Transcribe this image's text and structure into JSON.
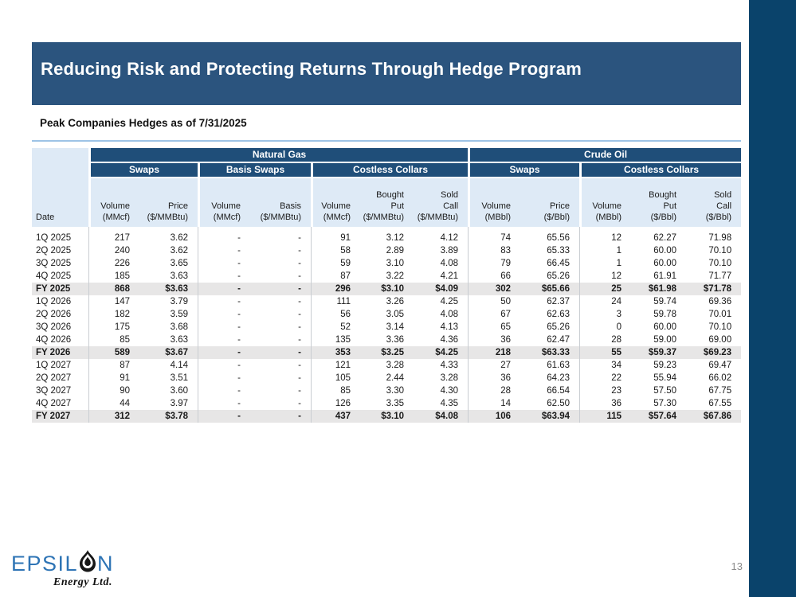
{
  "slide": {
    "title": "Reducing Risk and Protecting Returns Through Hedge Program",
    "subtitle": "Peak Companies Hedges as of 7/31/2025",
    "page_number": "13"
  },
  "logo": {
    "prefix": "EPSIL",
    "suffix": "N",
    "tagline": "Energy Ltd.",
    "icon": "oil-droplet-icon"
  },
  "colors": {
    "banner_blue": "#2B547E",
    "side_bar_blue": "#0A436B",
    "table_header_blue": "#1F4E79",
    "subheader_light_blue": "#DEEAF6",
    "total_row_gray": "#E7E6E6",
    "divider_light_blue": "#9DC3E6",
    "logo_blue": "#2E74B5"
  },
  "table": {
    "groups": [
      {
        "label": "Natural Gas",
        "span": 7
      },
      {
        "label": "Crude Oil",
        "span": 5
      }
    ],
    "subgroups": [
      {
        "label": "Swaps",
        "span": 2
      },
      {
        "label": "Basis Swaps",
        "span": 2
      },
      {
        "label": "Costless Collars",
        "span": 3
      },
      {
        "label": "Swaps",
        "span": 2
      },
      {
        "label": "Costless Collars",
        "span": 3
      }
    ],
    "columns": [
      "Date",
      "Volume\n(MMcf)",
      "Price\n($/MMBtu)",
      "Volume\n(MMcf)",
      "Basis\n($/MMBtu)",
      "Volume\n(MMcf)",
      "Bought\nPut\n($/MMBtu)",
      "Sold\nCall\n($/MMBtu)",
      "Volume\n(MBbl)",
      "Price\n($/Bbl)",
      "Volume\n(MBbl)",
      "Bought\nPut\n($/Bbl)",
      "Sold\nCall\n($/Bbl)"
    ],
    "rows": [
      {
        "total": false,
        "cells": [
          "1Q 2025",
          "217",
          "3.62",
          "-",
          "-",
          "91",
          "3.12",
          "4.12",
          "74",
          "65.56",
          "12",
          "62.27",
          "71.98"
        ]
      },
      {
        "total": false,
        "cells": [
          "2Q 2025",
          "240",
          "3.62",
          "-",
          "-",
          "58",
          "2.89",
          "3.89",
          "83",
          "65.33",
          "1",
          "60.00",
          "70.10"
        ]
      },
      {
        "total": false,
        "cells": [
          "3Q 2025",
          "226",
          "3.65",
          "-",
          "-",
          "59",
          "3.10",
          "4.08",
          "79",
          "66.45",
          "1",
          "60.00",
          "70.10"
        ]
      },
      {
        "total": false,
        "cells": [
          "4Q 2025",
          "185",
          "3.63",
          "-",
          "-",
          "87",
          "3.22",
          "4.21",
          "66",
          "65.26",
          "12",
          "61.91",
          "71.77"
        ]
      },
      {
        "total": true,
        "cells": [
          "FY 2025",
          "868",
          "$3.63",
          "-",
          "-",
          "296",
          "$3.10",
          "$4.09",
          "302",
          "$65.66",
          "25",
          "$61.98",
          "$71.78"
        ]
      },
      {
        "total": false,
        "cells": [
          "1Q 2026",
          "147",
          "3.79",
          "-",
          "-",
          "111",
          "3.26",
          "4.25",
          "50",
          "62.37",
          "24",
          "59.74",
          "69.36"
        ]
      },
      {
        "total": false,
        "cells": [
          "2Q 2026",
          "182",
          "3.59",
          "-",
          "-",
          "56",
          "3.05",
          "4.08",
          "67",
          "62.63",
          "3",
          "59.78",
          "70.01"
        ]
      },
      {
        "total": false,
        "cells": [
          "3Q 2026",
          "175",
          "3.68",
          "-",
          "-",
          "52",
          "3.14",
          "4.13",
          "65",
          "65.26",
          "0",
          "60.00",
          "70.10"
        ]
      },
      {
        "total": false,
        "cells": [
          "4Q 2026",
          "85",
          "3.63",
          "-",
          "-",
          "135",
          "3.36",
          "4.36",
          "36",
          "62.47",
          "28",
          "59.00",
          "69.00"
        ]
      },
      {
        "total": true,
        "cells": [
          "FY 2026",
          "589",
          "$3.67",
          "-",
          "-",
          "353",
          "$3.25",
          "$4.25",
          "218",
          "$63.33",
          "55",
          "$59.37",
          "$69.23"
        ]
      },
      {
        "total": false,
        "cells": [
          "1Q 2027",
          "87",
          "4.14",
          "-",
          "-",
          "121",
          "3.28",
          "4.33",
          "27",
          "61.63",
          "34",
          "59.23",
          "69.47"
        ]
      },
      {
        "total": false,
        "cells": [
          "2Q 2027",
          "91",
          "3.51",
          "-",
          "-",
          "105",
          "2.44",
          "3.28",
          "36",
          "64.23",
          "22",
          "55.94",
          "66.02"
        ]
      },
      {
        "total": false,
        "cells": [
          "3Q 2027",
          "90",
          "3.60",
          "-",
          "-",
          "85",
          "3.30",
          "4.30",
          "28",
          "66.54",
          "23",
          "57.50",
          "67.75"
        ]
      },
      {
        "total": false,
        "cells": [
          "4Q 2027",
          "44",
          "3.97",
          "-",
          "-",
          "126",
          "3.35",
          "4.35",
          "14",
          "62.50",
          "36",
          "57.30",
          "67.55"
        ]
      },
      {
        "total": true,
        "cells": [
          "FY 2027",
          "312",
          "$3.78",
          "-",
          "-",
          "437",
          "$3.10",
          "$4.08",
          "106",
          "$63.94",
          "115",
          "$57.64",
          "$67.86"
        ]
      }
    ]
  }
}
